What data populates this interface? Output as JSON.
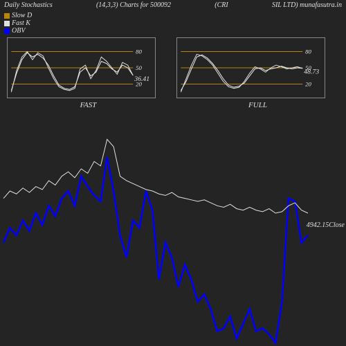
{
  "header": {
    "title": "Daily Stochastics",
    "params": "(14,3,3) Charts for 500092",
    "symbol": "(CRI",
    "company_site": "SIL LTD) munafasutra.in"
  },
  "legend": {
    "slow": {
      "label": "Slow D",
      "color": "#b8860b"
    },
    "fast": {
      "label": "Fast K",
      "color": "#e0e0e0"
    },
    "obv": {
      "label": "OBV",
      "color": "#0000ff"
    }
  },
  "mini_charts": {
    "grid_color": "#b8860b",
    "line_color_a": "#e0e0e0",
    "line_color_b": "#f0f0f0",
    "ticks": [
      20,
      50,
      80
    ],
    "xlim": [
      0,
      100
    ],
    "ylim": [
      0,
      100
    ],
    "fast": {
      "subtitle": "FAST",
      "value": "36.41",
      "series_a": [
        5,
        45,
        70,
        80,
        65,
        78,
        72,
        50,
        30,
        15,
        10,
        8,
        12,
        48,
        55,
        30,
        45,
        70,
        62,
        50,
        38,
        60,
        55,
        36
      ],
      "series_b": [
        8,
        40,
        65,
        78,
        70,
        75,
        68,
        55,
        35,
        18,
        12,
        10,
        15,
        42,
        50,
        35,
        42,
        62,
        58,
        48,
        42,
        55,
        50,
        36
      ]
    },
    "full": {
      "subtitle": "FULL",
      "value": "48.73",
      "series_a": [
        5,
        30,
        55,
        75,
        72,
        65,
        55,
        40,
        25,
        15,
        12,
        14,
        25,
        40,
        52,
        48,
        42,
        50,
        55,
        52,
        48,
        50,
        52,
        49
      ],
      "series_b": [
        8,
        25,
        48,
        70,
        74,
        68,
        58,
        45,
        30,
        18,
        14,
        16,
        22,
        35,
        48,
        50,
        45,
        48,
        50,
        53,
        50,
        48,
        50,
        49
      ]
    }
  },
  "main_chart": {
    "close_value": "4942.15",
    "close_label": "Close",
    "close_color": "#e0e0e0",
    "obv_color": "#0000ff",
    "xlim": [
      0,
      100
    ],
    "ylim": [
      0,
      100
    ],
    "close_line_width": 1,
    "obv_line_width": 2.5,
    "close_series": [
      50,
      55,
      53,
      57,
      54,
      58,
      56,
      62,
      59,
      65,
      68,
      64,
      70,
      67,
      75,
      72,
      90,
      85,
      65,
      62,
      60,
      58,
      56,
      55,
      53,
      52,
      54,
      51,
      50,
      49,
      48,
      49,
      47,
      45,
      44,
      46,
      43,
      42,
      44,
      42,
      41,
      43,
      40,
      41,
      45,
      47,
      42,
      40
    ],
    "obv_series": [
      20,
      30,
      25,
      35,
      28,
      40,
      32,
      45,
      38,
      50,
      55,
      45,
      65,
      58,
      52,
      48,
      78,
      55,
      25,
      10,
      35,
      30,
      55,
      42,
      -5,
      20,
      10,
      -10,
      5,
      -5,
      -20,
      -15,
      -25,
      -40,
      -38,
      -30,
      -45,
      -35,
      -25,
      -40,
      -38,
      -42,
      -48,
      -20,
      50,
      48,
      20,
      25
    ]
  },
  "styling": {
    "background": "#242424",
    "text_color": "#e0e0e0",
    "border_color": "#888888",
    "font_family": "Times New Roman",
    "font_style": "italic"
  }
}
